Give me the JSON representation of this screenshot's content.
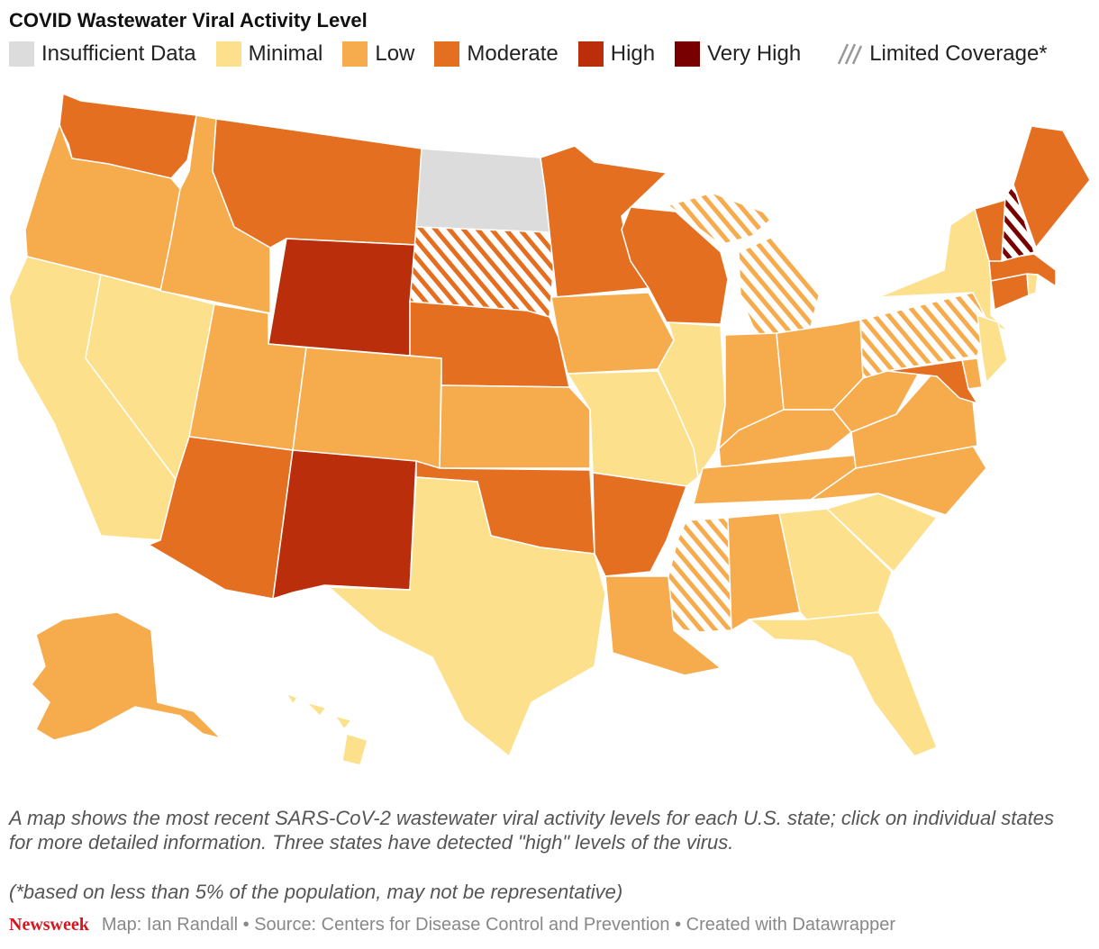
{
  "title": "COVID Wastewater Viral Activity Level",
  "legend": [
    {
      "label": "Insufficient Data",
      "color": "#dcdcdc"
    },
    {
      "label": "Minimal",
      "color": "#fde08c"
    },
    {
      "label": "Low",
      "color": "#f6ab4d"
    },
    {
      "label": "Moderate",
      "color": "#e56f21"
    },
    {
      "label": "High",
      "color": "#bb2e0b"
    },
    {
      "label": "Very High",
      "color": "#780000"
    }
  ],
  "limited_label": "Limited Coverage*",
  "caption": "A map shows the most recent SARS-CoV-2 wastewater viral activity levels for each U.S. state; click on individual states for more detailed information. Three states have detected \"high\" levels of the virus.",
  "footnote": "(*based on less than 5% of the population, may not be representative)",
  "brand": "Newsweek",
  "credits": "Map: Ian Randall • Source: Centers for Disease Control and Prevention • Created with Datawrapper",
  "states": {
    "WA": {
      "level": "Moderate"
    },
    "OR": {
      "level": "Low"
    },
    "CA": {
      "level": "Minimal"
    },
    "NV": {
      "level": "Minimal"
    },
    "ID": {
      "level": "Low"
    },
    "MT": {
      "level": "Moderate"
    },
    "WY": {
      "level": "High"
    },
    "UT": {
      "level": "Low"
    },
    "AZ": {
      "level": "Moderate"
    },
    "NM": {
      "level": "High"
    },
    "CO": {
      "level": "Low"
    },
    "ND": {
      "level": "Insufficient Data"
    },
    "SD": {
      "level": "Moderate",
      "limited": true
    },
    "NE": {
      "level": "Moderate"
    },
    "KS": {
      "level": "Low"
    },
    "OK": {
      "level": "Moderate"
    },
    "TX": {
      "level": "Minimal"
    },
    "MN": {
      "level": "Moderate"
    },
    "IA": {
      "level": "Low"
    },
    "MO": {
      "level": "Minimal"
    },
    "AR": {
      "level": "Moderate"
    },
    "LA": {
      "level": "Low"
    },
    "WI": {
      "level": "Moderate"
    },
    "IL": {
      "level": "Minimal"
    },
    "MI": {
      "level": "Low",
      "limited": true
    },
    "IN": {
      "level": "Low"
    },
    "OH": {
      "level": "Low"
    },
    "KY": {
      "level": "Low"
    },
    "TN": {
      "level": "Low"
    },
    "MS": {
      "level": "Low",
      "limited": true
    },
    "AL": {
      "level": "Low"
    },
    "GA": {
      "level": "Minimal"
    },
    "FL": {
      "level": "Minimal"
    },
    "SC": {
      "level": "Minimal"
    },
    "NC": {
      "level": "Low"
    },
    "VA": {
      "level": "Low"
    },
    "WV": {
      "level": "Low"
    },
    "PA": {
      "level": "Low",
      "limited": true
    },
    "NY": {
      "level": "Minimal"
    },
    "NJ": {
      "level": "Minimal"
    },
    "DE": {
      "level": "Low"
    },
    "MD": {
      "level": "Moderate"
    },
    "CT": {
      "level": "Moderate"
    },
    "RI": {
      "level": "Minimal"
    },
    "MA": {
      "level": "Moderate"
    },
    "VT": {
      "level": "Moderate"
    },
    "NH": {
      "level": "Very High",
      "limited": true
    },
    "ME": {
      "level": "Moderate"
    },
    "AK": {
      "level": "Low"
    },
    "HI": {
      "level": "Minimal"
    }
  }
}
